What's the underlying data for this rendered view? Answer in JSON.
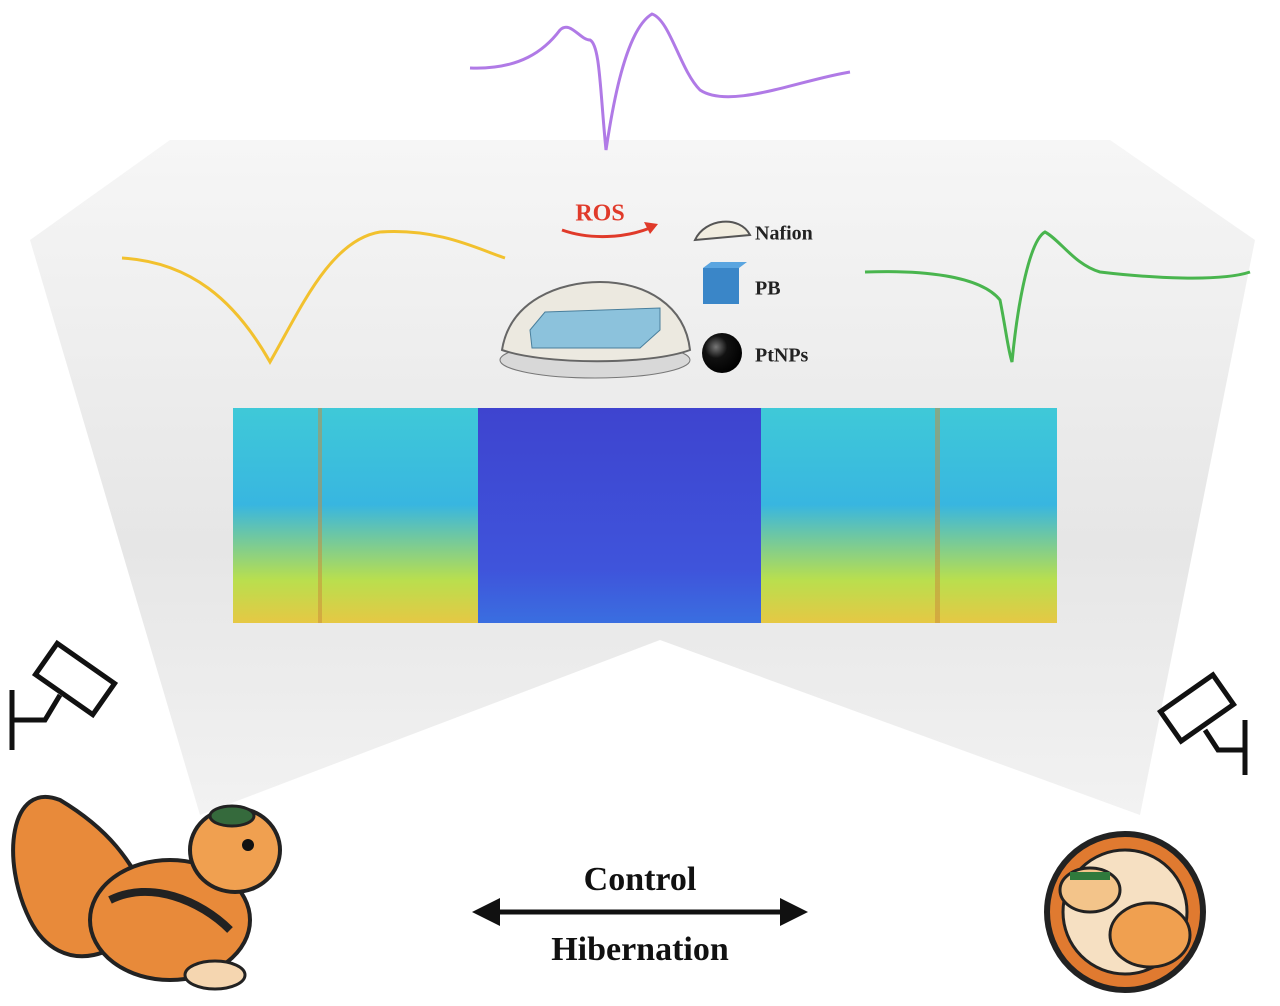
{
  "legend": {
    "ros": "ROS",
    "nafion": "Nafion",
    "pb": "PB",
    "ptnps": "PtNPs"
  },
  "states": {
    "control": "Control",
    "hibernation": "Hibernation"
  }
}
